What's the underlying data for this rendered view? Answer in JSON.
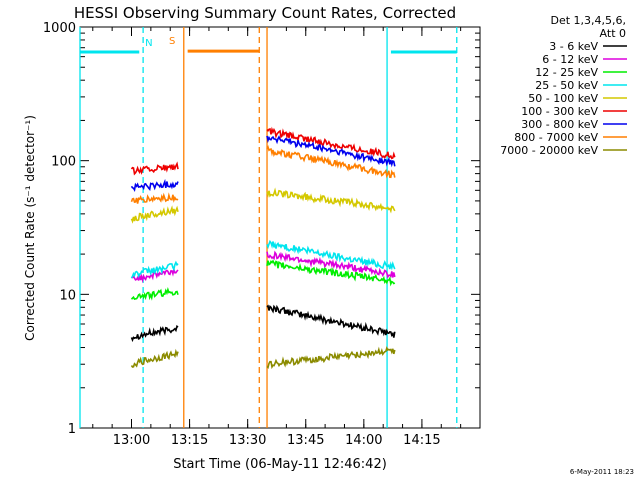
{
  "chart_data": {
    "type": "line",
    "title": "HESSI Observing Summary Count Rates, Corrected",
    "xlabel": "Start Time (06-May-11 12:46:42)",
    "ylabel": "Corrected Count Rate (s⁻¹ detector⁻¹)",
    "ylim": [
      1,
      1000
    ],
    "yscale": "log",
    "y_tick_labels": [
      "1",
      "10",
      "100",
      "1000"
    ],
    "y_ticks": [
      1,
      10,
      100,
      1000
    ],
    "xlim": [
      "12:46:42",
      "14:30:00"
    ],
    "x_ticks": [
      "13:00",
      "13:15",
      "13:30",
      "13:45",
      "14:00",
      "14:15"
    ],
    "grid": false,
    "legend": {
      "position": "right",
      "header": [
        "Det 1,3,4,5,6,",
        "Att 0"
      ]
    },
    "flags": [
      {
        "label": "N",
        "color": "#00e5ee"
      },
      {
        "label": "S",
        "color": "#ff7f00"
      }
    ],
    "vertical_markers": [
      {
        "time": "12:46:42",
        "color": "#00e5ee",
        "style": "solid"
      },
      {
        "time": "13:03:00",
        "color": "#00e5ee",
        "style": "dashed"
      },
      {
        "time": "13:13:30",
        "color": "#ff7f00",
        "style": "solid"
      },
      {
        "time": "13:33:00",
        "color": "#ff7f00",
        "style": "dashed"
      },
      {
        "time": "13:35:00",
        "color": "#ff7f00",
        "style": "solid"
      },
      {
        "time": "14:06:00",
        "color": "#00e5ee",
        "style": "solid"
      },
      {
        "time": "14:24:00",
        "color": "#00e5ee",
        "style": "dashed"
      }
    ],
    "horizontal_bars": [
      {
        "start": "12:46:42",
        "end": "13:02:00",
        "value": 650,
        "color": "#00e5ee"
      },
      {
        "start": "13:14:30",
        "end": "13:33:00",
        "value": 660,
        "color": "#ff7f00"
      },
      {
        "start": "14:07:00",
        "end": "14:24:00",
        "value": 650,
        "color": "#00e5ee"
      }
    ],
    "series": [
      {
        "name": "3 - 6 keV",
        "color": "#000000",
        "segments": [
          {
            "start": "13:00:00",
            "end": "13:12:00",
            "y_start": 4.8,
            "y_end": 5.6
          },
          {
            "start": "13:35:00",
            "end": "14:08:00",
            "y_start": 8.0,
            "y_end": 5.0
          }
        ]
      },
      {
        "name": "6 - 12 keV",
        "color": "#dd00dd",
        "segments": [
          {
            "start": "13:00:00",
            "end": "13:12:00",
            "y_start": 13.0,
            "y_end": 15.0
          },
          {
            "start": "13:35:00",
            "end": "14:08:00",
            "y_start": 20.0,
            "y_end": 14.0
          }
        ]
      },
      {
        "name": "12 - 25 keV",
        "color": "#00ee00",
        "segments": [
          {
            "start": "13:00:00",
            "end": "13:12:00",
            "y_start": 9.5,
            "y_end": 10.5
          },
          {
            "start": "13:35:00",
            "end": "14:08:00",
            "y_start": 17.0,
            "y_end": 12.5
          }
        ]
      },
      {
        "name": "25 - 50 keV",
        "color": "#00e5ee",
        "segments": [
          {
            "start": "13:00:00",
            "end": "13:12:00",
            "y_start": 14.0,
            "y_end": 16.5
          },
          {
            "start": "13:35:00",
            "end": "14:08:00",
            "y_start": 24.0,
            "y_end": 16.0
          }
        ]
      },
      {
        "name": "50 - 100 keV",
        "color": "#d4c800",
        "segments": [
          {
            "start": "13:00:00",
            "end": "13:12:00",
            "y_start": 37.0,
            "y_end": 43.0
          },
          {
            "start": "13:35:00",
            "end": "14:08:00",
            "y_start": 58.0,
            "y_end": 44.0
          }
        ]
      },
      {
        "name": "100 - 300 keV",
        "color": "#ee0000",
        "segments": [
          {
            "start": "13:00:00",
            "end": "13:12:00",
            "y_start": 84.0,
            "y_end": 90.0
          },
          {
            "start": "13:35:00",
            "end": "14:08:00",
            "y_start": 165.0,
            "y_end": 108.0
          }
        ]
      },
      {
        "name": "300 - 800 keV",
        "color": "#0000ee",
        "segments": [
          {
            "start": "13:00:00",
            "end": "13:12:00",
            "y_start": 63.0,
            "y_end": 67.0
          },
          {
            "start": "13:35:00",
            "end": "14:08:00",
            "y_start": 150.0,
            "y_end": 95.0
          }
        ]
      },
      {
        "name": "800 - 7000 keV",
        "color": "#ff7f00",
        "segments": [
          {
            "start": "13:00:00",
            "end": "13:12:00",
            "y_start": 50.0,
            "y_end": 53.0
          },
          {
            "start": "13:35:00",
            "end": "14:08:00",
            "y_start": 120.0,
            "y_end": 78.0
          }
        ]
      },
      {
        "name": "7000 - 20000 keV",
        "color": "#8b8b00",
        "segments": [
          {
            "start": "13:00:00",
            "end": "13:12:00",
            "y_start": 3.0,
            "y_end": 3.6
          },
          {
            "start": "13:35:00",
            "end": "14:08:00",
            "y_start": 3.0,
            "y_end": 3.8
          }
        ]
      }
    ]
  },
  "footer": {
    "timestamp": "6-May-2011 18:23"
  }
}
